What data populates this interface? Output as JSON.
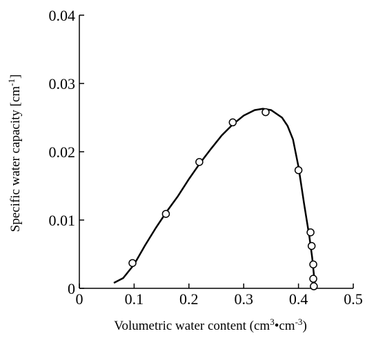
{
  "chart_data": {
    "type": "scatter",
    "xlabel": [
      {
        "text": "Volumetric water content  (cm"
      },
      {
        "sup": "3"
      },
      {
        "text": "•cm"
      },
      {
        "sup": "-3"
      },
      {
        "text": ")"
      }
    ],
    "ylabel": [
      {
        "text": "Specific water capacity  [cm"
      },
      {
        "sup": "-1"
      },
      {
        "text": "]"
      }
    ],
    "xlim": [
      0,
      0.5
    ],
    "xticks": [
      0,
      0.1,
      0.2,
      0.3,
      0.4,
      0.5
    ],
    "ylim": [
      0,
      0.04
    ],
    "yticks": [
      0,
      0.01,
      0.02,
      0.03,
      0.04
    ],
    "grid": false,
    "series": [
      {
        "type": "line",
        "color": "#000000",
        "x": [
          0.063,
          0.08,
          0.1,
          0.12,
          0.14,
          0.16,
          0.18,
          0.2,
          0.22,
          0.24,
          0.26,
          0.28,
          0.3,
          0.32,
          0.335,
          0.35,
          0.37,
          0.38,
          0.39,
          0.4,
          0.41,
          0.42,
          0.425,
          0.43
        ],
        "values": [
          0.0008,
          0.0015,
          0.0035,
          0.0063,
          0.0089,
          0.0113,
          0.0135,
          0.016,
          0.0183,
          0.0204,
          0.0224,
          0.024,
          0.0253,
          0.0261,
          0.0263,
          0.0261,
          0.025,
          0.0238,
          0.0218,
          0.0178,
          0.0125,
          0.0075,
          0.0045,
          0.0005
        ]
      },
      {
        "type": "scatter",
        "color": "#000000",
        "x": [
          0.097,
          0.158,
          0.219,
          0.28,
          0.34,
          0.4,
          0.422,
          0.424,
          0.427,
          0.427,
          0.428
        ],
        "values": [
          0.0037,
          0.0109,
          0.0185,
          0.0243,
          0.0258,
          0.0173,
          0.0082,
          0.0062,
          0.0035,
          0.0014,
          0.0003
        ]
      }
    ]
  }
}
